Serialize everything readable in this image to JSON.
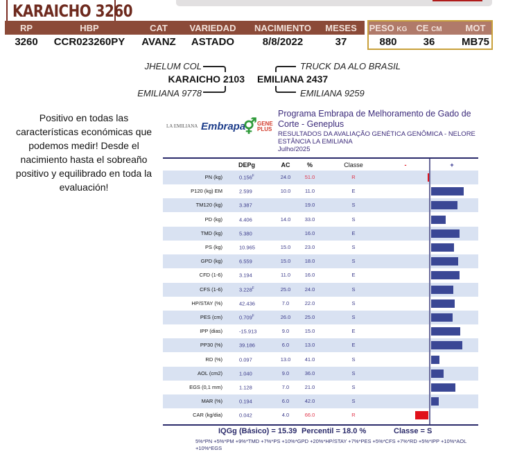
{
  "header": {
    "title": "KARAICHO 3260"
  },
  "info": {
    "columns": [
      "RP",
      "HBP",
      "CAT",
      "VARIEDAD",
      "NACIMIENTO",
      "MESES"
    ],
    "values": [
      "3260",
      "CCR023260PY",
      "AVANZ",
      "ASTADO",
      "8/8/2022",
      "37"
    ],
    "gold_columns": [
      {
        "label": "PESO",
        "unit": "KG"
      },
      {
        "label": "CE",
        "unit": "CM"
      },
      {
        "label": "MOT",
        "unit": ""
      }
    ],
    "gold_values": [
      "880",
      "36",
      "MB75"
    ]
  },
  "pedigree": {
    "sire": "KARAICHO 2103",
    "sire_sire": "JHELUM COL",
    "sire_dam": "EMILIANA 9778",
    "dam": "EMILIANA 2437",
    "dam_sire": "TRUCK DA ALO BRASIL",
    "dam_dam": "EMILIANA 9259"
  },
  "comment": "Positivo en todas las características económicas que podemos medir! Desde el nacimiento hasta el sobreaño positivo y equilibrado en toda la evaluación!",
  "report": {
    "logos": [
      "LA EMILIANA",
      "Embrapa",
      "GENE PLUS"
    ],
    "program": "Programa Embrapa de Melhoramento de Gado de Corte - Geneplus",
    "subtitle": "RESULTADOS DA AVALIAÇÃO GENÉTICA GENÔMICA - NELORE",
    "farm": "ESTÂNCIA LA EMILIANA",
    "date": "Julho/2025",
    "columns": {
      "depg": "DEPg",
      "ac": "AC",
      "pct": "%",
      "classe": "Classe",
      "minus": "-",
      "plus": "+"
    },
    "colors": {
      "positive_bar": "#3a4795",
      "negative_bar": "#e0101a",
      "row_alt": "#d9e2f2",
      "text": "#3a3a8a",
      "red_text": "#e0354a"
    },
    "rows": [
      {
        "trait": "PN (kg)",
        "depg": "0.156",
        "sup": "F",
        "ac": "24.0",
        "pct": "51.0",
        "classe": "R",
        "bar": -2
      },
      {
        "trait": "P120 (kg) EM",
        "depg": "2.599",
        "sup": "",
        "ac": "10.0",
        "pct": "11.0",
        "classe": "E",
        "bar": 94
      },
      {
        "trait": "TM120 (kg)",
        "depg": "3.387",
        "sup": "",
        "ac": "",
        "pct": "19.0",
        "classe": "S",
        "bar": 76
      },
      {
        "trait": "PD (kg)",
        "depg": "4.406",
        "sup": "",
        "ac": "14.0",
        "pct": "33.0",
        "classe": "S",
        "bar": 42
      },
      {
        "trait": "TMD (kg)",
        "depg": "5.380",
        "sup": "",
        "ac": "",
        "pct": "16.0",
        "classe": "E",
        "bar": 82
      },
      {
        "trait": "PS (kg)",
        "depg": "10.965",
        "sup": "",
        "ac": "15.0",
        "pct": "23.0",
        "classe": "S",
        "bar": 66
      },
      {
        "trait": "GPD (kg)",
        "depg": "6.559",
        "sup": "",
        "ac": "15.0",
        "pct": "18.0",
        "classe": "S",
        "bar": 78
      },
      {
        "trait": "CFD (1-6)",
        "depg": "3.194",
        "sup": "",
        "ac": "11.0",
        "pct": "16.0",
        "classe": "E",
        "bar": 82
      },
      {
        "trait": "CFS (1-6)",
        "depg": "3.228",
        "sup": "F",
        "ac": "25.0",
        "pct": "24.0",
        "classe": "S",
        "bar": 64
      },
      {
        "trait": "HP/STAY (%)",
        "depg": "42.436",
        "sup": "",
        "ac": "7.0",
        "pct": "22.0",
        "classe": "S",
        "bar": 68
      },
      {
        "trait": "PES (cm)",
        "depg": "0.709",
        "sup": "F",
        "ac": "26.0",
        "pct": "25.0",
        "classe": "S",
        "bar": 62
      },
      {
        "trait": "IPP (dias)",
        "depg": "-15.913",
        "sup": "",
        "ac": "9.0",
        "pct": "15.0",
        "classe": "E",
        "bar": 84
      },
      {
        "trait": "PP30 (%)",
        "depg": "39.186",
        "sup": "",
        "ac": "6.0",
        "pct": "13.0",
        "classe": "E",
        "bar": 90
      },
      {
        "trait": "RD (%)",
        "depg": "0.097",
        "sup": "",
        "ac": "13.0",
        "pct": "41.0",
        "classe": "S",
        "bar": 24
      },
      {
        "trait": "AOL (cm2)",
        "depg": "1.040",
        "sup": "",
        "ac": "9.0",
        "pct": "36.0",
        "classe": "S",
        "bar": 36
      },
      {
        "trait": "EGS (0,1 mm)",
        "depg": "1.128",
        "sup": "",
        "ac": "7.0",
        "pct": "21.0",
        "classe": "S",
        "bar": 70
      },
      {
        "trait": "MAR (%)",
        "depg": "0.194",
        "sup": "",
        "ac": "6.0",
        "pct": "42.0",
        "classe": "S",
        "bar": 22
      },
      {
        "trait": "CAR (kg/dia)",
        "depg": "0.042",
        "sup": "",
        "ac": "4.0",
        "pct": "66.0",
        "classe": "R",
        "bar": -38
      }
    ],
    "summary": {
      "iqgg": "IQGg (Básico) = 15.39",
      "percentil": "Percentil = 18.0 %",
      "classe": "Classe = S"
    },
    "formula": "5%*PN +5%*PM +9%*TMD +7%*PS +10%*GPD +20%*HP/STAY +7%*PES +5%*CFS +7%*RD +5%*IPP +10%*AOL +10%*EGS"
  }
}
